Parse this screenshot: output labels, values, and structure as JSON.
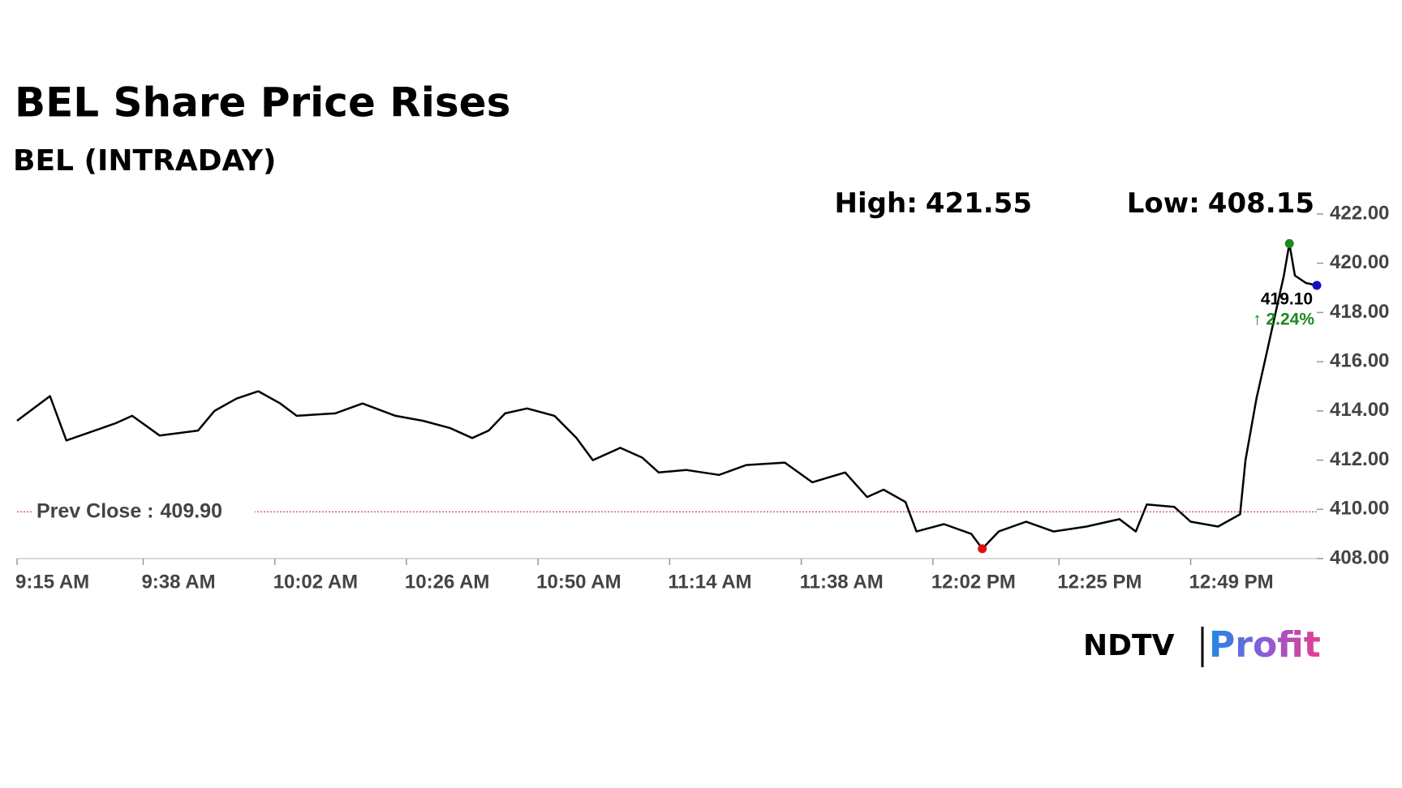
{
  "chart_data": {
    "type": "line",
    "title": "BEL Share Price Rises",
    "subtitle": "BEL (INTRADAY)",
    "color": "#000000",
    "x": [
      "9:15 AM",
      "9:21 AM",
      "9:24 AM",
      "9:33 AM",
      "9:36 AM",
      "9:41 AM",
      "9:48 AM",
      "9:51 AM",
      "9:55 AM",
      "9:59 AM",
      "10:03 AM",
      "10:06 AM",
      "10:13 AM",
      "10:18 AM",
      "10:24 AM",
      "10:29 AM",
      "10:34 AM",
      "10:38 AM",
      "10:41 AM",
      "10:44 AM",
      "10:48 AM",
      "10:53 AM",
      "10:57 AM",
      "11:00 AM",
      "11:05 AM",
      "11:09 AM",
      "11:12 AM",
      "11:17 AM",
      "11:23 AM",
      "11:28 AM",
      "11:35 AM",
      "11:40 AM",
      "11:46 AM",
      "11:50 AM",
      "11:53 AM",
      "11:57 AM",
      "11:59 AM",
      "12:04 PM",
      "12:09 PM",
      "12:11 PM",
      "12:14 PM",
      "12:19 PM",
      "12:24 PM",
      "12:30 PM",
      "12:36 PM",
      "12:39 PM",
      "12:41 PM",
      "12:46 PM",
      "12:49 PM",
      "12:54 PM",
      "12:58 PM",
      "12:59 PM",
      "1:01 PM",
      "1:03 PM",
      "1:04 PM",
      "1:06 PM",
      "1:07 PM",
      "1:08 PM",
      "1:10 PM",
      "1:12 PM"
    ],
    "values": [
      413.6,
      414.6,
      412.8,
      413.5,
      413.8,
      413.0,
      413.2,
      414.0,
      414.5,
      414.8,
      414.3,
      413.8,
      413.9,
      414.3,
      413.8,
      413.6,
      413.3,
      412.9,
      413.2,
      413.9,
      414.1,
      413.8,
      412.9,
      412.0,
      412.5,
      412.1,
      411.5,
      411.6,
      411.4,
      411.8,
      411.9,
      411.1,
      411.5,
      410.5,
      410.8,
      410.3,
      409.1,
      409.4,
      409.0,
      408.4,
      409.1,
      409.5,
      409.1,
      409.3,
      409.6,
      409.1,
      410.2,
      410.1,
      409.5,
      409.3,
      409.8,
      412.0,
      414.5,
      416.5,
      417.5,
      419.5,
      420.8,
      419.5,
      419.2,
      419.1
    ],
    "xlim": [
      "9:15 AM",
      "1:12 PM"
    ],
    "xticks": [
      "9:15 AM",
      "9:38 AM",
      "10:02 AM",
      "10:26 AM",
      "10:50 AM",
      "11:14 AM",
      "11:38 AM",
      "12:02 PM",
      "12:25 PM",
      "12:49 PM"
    ],
    "ylim": [
      408,
      422
    ],
    "yticks": [
      {
        "value": 408,
        "label": "408.00"
      },
      {
        "value": 410,
        "label": "410.00"
      },
      {
        "value": 412,
        "label": "412.00"
      },
      {
        "value": 414,
        "label": "414.00"
      },
      {
        "value": 416,
        "label": "416.00"
      },
      {
        "value": 418,
        "label": "418.00"
      },
      {
        "value": 420,
        "label": "420.00"
      },
      {
        "value": 422,
        "label": "422.00"
      }
    ],
    "high": {
      "label": "High:",
      "value": 421.55,
      "color": "#1a8a1a"
    },
    "low": {
      "label": "Low:",
      "value": 408.15,
      "color": "#e01010"
    },
    "prev_close": {
      "label": "Prev Close :",
      "value": 409.9,
      "value_label": "409.90",
      "color": "#c0392b"
    },
    "last": {
      "value": 419.1,
      "label": "419.10",
      "color": "#1010c0"
    },
    "change": {
      "value": 2.24,
      "label": "↑ 2.24%"
    },
    "brand": [
      "NDTV",
      "Profit"
    ]
  }
}
